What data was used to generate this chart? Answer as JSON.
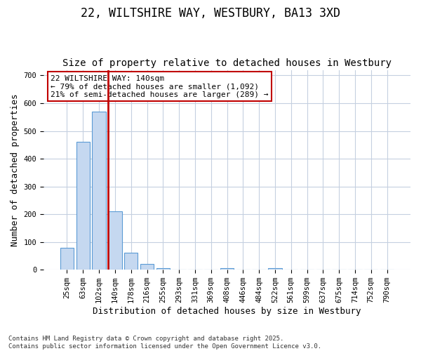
{
  "title_line1": "22, WILTSHIRE WAY, WESTBURY, BA13 3XD",
  "title_line2": "Size of property relative to detached houses in Westbury",
  "xlabel": "Distribution of detached houses by size in Westbury",
  "ylabel": "Number of detached properties",
  "categories": [
    "25sqm",
    "63sqm",
    "102sqm",
    "140sqm",
    "178sqm",
    "216sqm",
    "255sqm",
    "293sqm",
    "331sqm",
    "369sqm",
    "408sqm",
    "446sqm",
    "484sqm",
    "522sqm",
    "561sqm",
    "599sqm",
    "637sqm",
    "675sqm",
    "714sqm",
    "752sqm",
    "790sqm"
  ],
  "values": [
    80,
    460,
    570,
    210,
    60,
    20,
    5,
    0,
    0,
    0,
    5,
    0,
    0,
    5,
    0,
    0,
    0,
    0,
    0,
    0,
    0
  ],
  "bar_color": "#c5d8f0",
  "bar_edge_color": "#5b9bd5",
  "vline_bar_index": 3,
  "vline_color": "#c00000",
  "annotation_text": "22 WILTSHIRE WAY: 140sqm\n← 79% of detached houses are smaller (1,092)\n21% of semi-detached houses are larger (289) →",
  "annotation_box_edgecolor": "#c00000",
  "ylim": [
    0,
    720
  ],
  "yticks": [
    0,
    100,
    200,
    300,
    400,
    500,
    600,
    700
  ],
  "background_color": "#ffffff",
  "grid_color": "#c5d0e0",
  "footnote": "Contains HM Land Registry data © Crown copyright and database right 2025.\nContains public sector information licensed under the Open Government Licence v3.0.",
  "title_fontsize": 12,
  "subtitle_fontsize": 10,
  "axis_label_fontsize": 9,
  "tick_fontsize": 7.5,
  "annotation_fontsize": 8,
  "footnote_fontsize": 6.5
}
